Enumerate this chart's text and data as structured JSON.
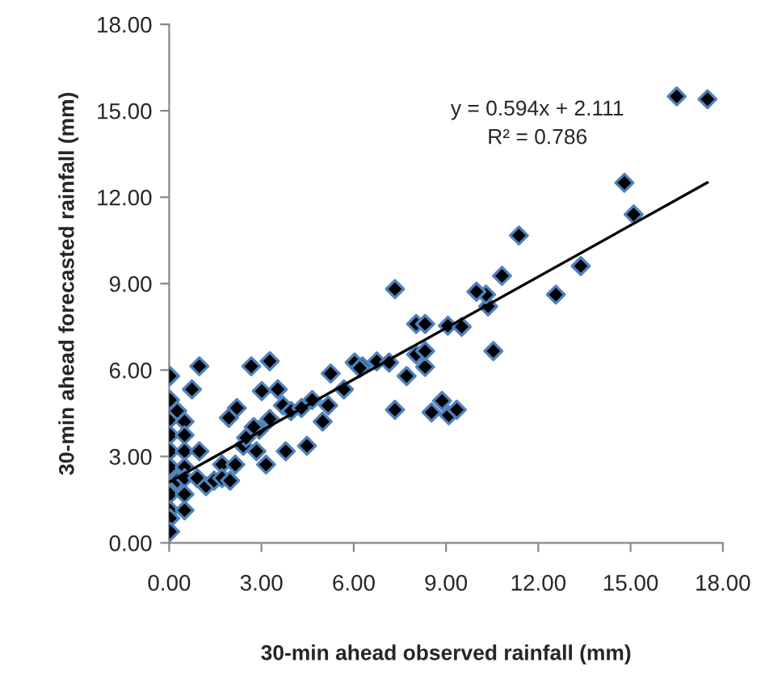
{
  "chart_data": {
    "type": "scatter",
    "xlabel": "30-min ahead observed rainfall (mm)",
    "ylabel": "30-min ahead forecasted rainfall (mm)",
    "xlim": [
      0,
      18
    ],
    "ylim": [
      0,
      18
    ],
    "xticks": [
      {
        "value": 0,
        "label": "0.00"
      },
      {
        "value": 3,
        "label": "3.00"
      },
      {
        "value": 6,
        "label": "6.00"
      },
      {
        "value": 9,
        "label": "9.00"
      },
      {
        "value": 12,
        "label": "12.00"
      },
      {
        "value": 15,
        "label": "15.00"
      },
      {
        "value": 18,
        "label": "18.00"
      }
    ],
    "yticks": [
      {
        "value": 0,
        "label": "0.00"
      },
      {
        "value": 3,
        "label": "3.00"
      },
      {
        "value": 6,
        "label": "6.00"
      },
      {
        "value": 9,
        "label": "9.00"
      },
      {
        "value": 12,
        "label": "12.00"
      },
      {
        "value": 15,
        "label": "15.00"
      },
      {
        "value": 18,
        "label": "18.00"
      }
    ],
    "grid": false,
    "annotations": [
      "y = 0.594x + 2.111",
      "R² = 0.786"
    ],
    "series": [
      {
        "marker": "diamond",
        "color": "#000000",
        "x": [
          0.03,
          0.03,
          0.03,
          0.03,
          0.03,
          0.03,
          0.03,
          0.03,
          0.03,
          0.03,
          0.26,
          0.26,
          0.5,
          0.5,
          0.5,
          0.5,
          0.5,
          0.5,
          0.5,
          0.98,
          0.74,
          0.98,
          0.91,
          1.2,
          1.46,
          1.72,
          1.72,
          1.98,
          2.15,
          1.94,
          2.2,
          2.67,
          3.27,
          3.01,
          3.53,
          2.41,
          2.84,
          3.15,
          2.93,
          3.27,
          3.7,
          3.79,
          4.48,
          3.96,
          4.3,
          4.65,
          4.99,
          5.25,
          5.17,
          5.68,
          6.03,
          6.28,
          2.5,
          2.75,
          6.2,
          6.75,
          7.15,
          7.72,
          8.32,
          8.03,
          8.32,
          10.54,
          8.03,
          8.32,
          9.06,
          9.51,
          10.37,
          10.3,
          9.99,
          7.34,
          10.82,
          12.57,
          13.38,
          11.37,
          7.34,
          8.53,
          8.87,
          9.09,
          9.35,
          14.8,
          15.1,
          16.5,
          17.5
        ],
        "values": [
          5.79,
          4.96,
          4.3,
          3.74,
          3.18,
          2.63,
          1.69,
          1.13,
          0.85,
          0.39,
          4.58,
          2.16,
          4.21,
          3.74,
          3.18,
          2.63,
          2.25,
          1.69,
          1.13,
          6.13,
          5.33,
          3.18,
          2.25,
          1.97,
          2.16,
          2.72,
          2.25,
          2.16,
          2.72,
          4.34,
          4.68,
          6.13,
          6.31,
          5.27,
          5.33,
          3.37,
          3.18,
          2.72,
          3.93,
          4.3,
          4.77,
          3.18,
          3.37,
          4.58,
          4.68,
          4.96,
          4.21,
          5.88,
          4.77,
          5.33,
          6.26,
          6.13,
          3.65,
          4.02,
          6.07,
          6.3,
          6.26,
          5.79,
          6.11,
          6.54,
          6.66,
          6.66,
          7.6,
          7.6,
          7.54,
          7.5,
          8.21,
          8.62,
          8.72,
          8.81,
          9.27,
          8.62,
          9.61,
          10.67,
          4.62,
          4.53,
          4.93,
          4.43,
          4.62,
          12.5,
          11.4,
          15.5,
          15.4
        ]
      },
      {
        "type": "line",
        "marker": "none",
        "color": "#000000",
        "x": [
          0,
          17.5
        ],
        "values": [
          2.11,
          12.51
        ]
      }
    ]
  }
}
